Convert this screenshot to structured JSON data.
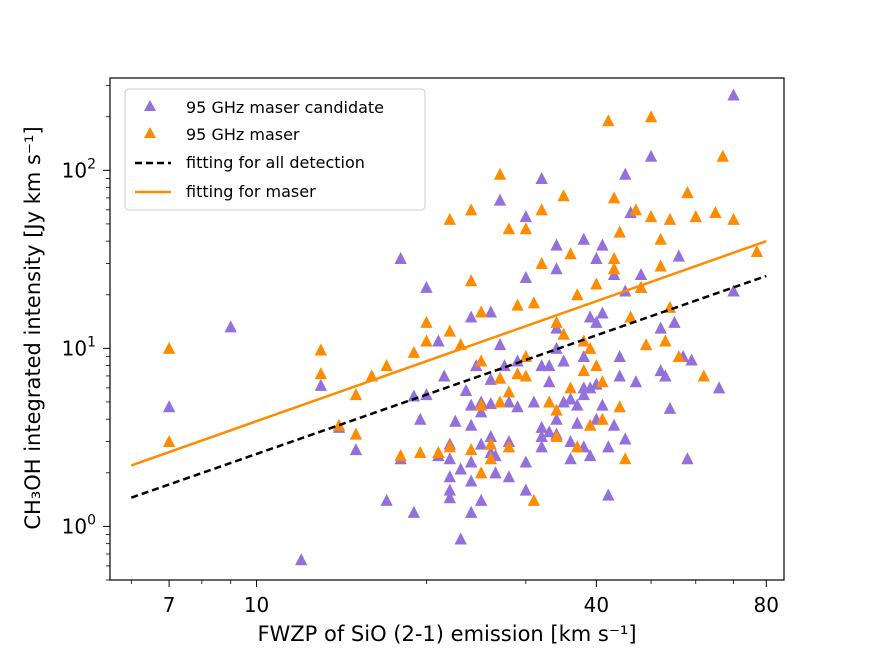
{
  "chart_data": {
    "type": "scatter",
    "xscale": "log",
    "yscale": "log",
    "xlim": [
      5.5,
      86
    ],
    "ylim": [
      0.5,
      330
    ],
    "xlabel": "FWZP of SiO (2-1) emission [km s⁻¹]",
    "ylabel": "CH₃OH integrated intensity [Jy km s⁻¹]",
    "xticks": [
      {
        "value": 7,
        "label": "7"
      },
      {
        "value": 10,
        "label": "10"
      },
      {
        "value": 40,
        "label": "40"
      },
      {
        "value": 80,
        "label": "80"
      }
    ],
    "yticks": [
      {
        "value": 1,
        "base": "10",
        "exp": "0"
      },
      {
        "value": 10,
        "base": "10",
        "exp": "1"
      },
      {
        "value": 100,
        "base": "10",
        "exp": "2"
      }
    ],
    "legend_position": "upper-left",
    "series": [
      {
        "name": "95 GHz maser candidate",
        "kind": "marker",
        "marker": "triangle",
        "color": "#9370DB",
        "points": [
          [
            7.0,
            4.7
          ],
          [
            9.0,
            13.2
          ],
          [
            12.0,
            0.65
          ],
          [
            13.0,
            6.2
          ],
          [
            14.0,
            3.6
          ],
          [
            15.0,
            2.7
          ],
          [
            16.0,
            7.0
          ],
          [
            17.0,
            1.4
          ],
          [
            18.0,
            32.0
          ],
          [
            18.0,
            2.4
          ],
          [
            19.0,
            5.4
          ],
          [
            19.0,
            1.2
          ],
          [
            19.5,
            4.0
          ],
          [
            20.0,
            22.0
          ],
          [
            20.0,
            5.5
          ],
          [
            21.0,
            11.0
          ],
          [
            21.0,
            2.5
          ],
          [
            21.5,
            7.0
          ],
          [
            22.0,
            2.9
          ],
          [
            22.0,
            2.4
          ],
          [
            22.0,
            1.9
          ],
          [
            22.0,
            1.6
          ],
          [
            22.0,
            1.45
          ],
          [
            22.5,
            3.9
          ],
          [
            23.0,
            2.1
          ],
          [
            23.0,
            0.85
          ],
          [
            23.5,
            5.8
          ],
          [
            24.0,
            15.0
          ],
          [
            24.0,
            4.8
          ],
          [
            24.0,
            3.7
          ],
          [
            24.0,
            2.3
          ],
          [
            24.0,
            1.8
          ],
          [
            24.0,
            1.2
          ],
          [
            24.5,
            8.0
          ],
          [
            25.0,
            5.0
          ],
          [
            25.0,
            4.4
          ],
          [
            25.0,
            2.9
          ],
          [
            25.0,
            1.4
          ],
          [
            26.0,
            16.0
          ],
          [
            26.0,
            6.7
          ],
          [
            26.0,
            4.9
          ],
          [
            26.0,
            3.2
          ],
          [
            26.0,
            2.6
          ],
          [
            26.5,
            2.5
          ],
          [
            26.5,
            2.0
          ],
          [
            27.0,
            68.0
          ],
          [
            27.0,
            10.5
          ],
          [
            27.5,
            8.0
          ],
          [
            28.0,
            5.0
          ],
          [
            28.0,
            3.0
          ],
          [
            28.0,
            1.9
          ],
          [
            29.0,
            8.5
          ],
          [
            29.0,
            4.7
          ],
          [
            30.0,
            25.0
          ],
          [
            30.0,
            9.0
          ],
          [
            30.0,
            2.3
          ],
          [
            30.0,
            1.6
          ],
          [
            30.0,
            55.0
          ],
          [
            31.0,
            5.0
          ],
          [
            32.0,
            90.0
          ],
          [
            32.0,
            8.0
          ],
          [
            32.0,
            3.6
          ],
          [
            32.0,
            3.2
          ],
          [
            32.0,
            2.8
          ],
          [
            33.0,
            8.0
          ],
          [
            33.0,
            6.5
          ],
          [
            33.0,
            3.4
          ],
          [
            34.0,
            38.0
          ],
          [
            34.0,
            28.0
          ],
          [
            34.0,
            13.0
          ],
          [
            34.0,
            10.0
          ],
          [
            34.0,
            4.0
          ],
          [
            34.0,
            3.3
          ],
          [
            35.0,
            8.5
          ],
          [
            35.0,
            5.0
          ],
          [
            36.0,
            3.0
          ],
          [
            36.0,
            5.2
          ],
          [
            36.0,
            2.4
          ],
          [
            37.0,
            4.8
          ],
          [
            37.0,
            3.8
          ],
          [
            38.0,
            9.0
          ],
          [
            38.0,
            6.0
          ],
          [
            38.0,
            5.5
          ],
          [
            38.0,
            2.8
          ],
          [
            38.0,
            41.0
          ],
          [
            39.0,
            15.0
          ],
          [
            39.0,
            6.0
          ],
          [
            39.0,
            2.5
          ],
          [
            40.0,
            32.0
          ],
          [
            40.0,
            14.0
          ],
          [
            40.0,
            6.3
          ],
          [
            40.0,
            4.0
          ],
          [
            41.0,
            38.0
          ],
          [
            41.0,
            15.8
          ],
          [
            41.0,
            4.8
          ],
          [
            42.0,
            2.8
          ],
          [
            42.0,
            1.5
          ],
          [
            43.0,
            3.7
          ],
          [
            43.0,
            26.0
          ],
          [
            44.0,
            9.0
          ],
          [
            44.0,
            7.0
          ],
          [
            45.0,
            95.0
          ],
          [
            45.0,
            21.0
          ],
          [
            45.0,
            3.1
          ],
          [
            46.0,
            58.0
          ],
          [
            47.0,
            6.5
          ],
          [
            48.0,
            22.0
          ],
          [
            48.0,
            26.0
          ],
          [
            50.0,
            120.0
          ],
          [
            52.0,
            7.5
          ],
          [
            52.0,
            13.0
          ],
          [
            53.0,
            7.0
          ],
          [
            54.0,
            4.6
          ],
          [
            55.0,
            14.0
          ],
          [
            56.0,
            33.0
          ],
          [
            57.0,
            9.0
          ],
          [
            58.0,
            2.4
          ],
          [
            59.0,
            8.6
          ],
          [
            66.0,
            6.0
          ],
          [
            70.0,
            265.0
          ],
          [
            70.0,
            21.0
          ]
        ]
      },
      {
        "name": "95 GHz maser",
        "kind": "marker",
        "marker": "triangle",
        "color": "#FF8C00",
        "points": [
          [
            7.0,
            10.0
          ],
          [
            7.0,
            3.0
          ],
          [
            13.0,
            9.8
          ],
          [
            13.0,
            7.2
          ],
          [
            14.0,
            3.7
          ],
          [
            15.0,
            5.5
          ],
          [
            15.0,
            3.3
          ],
          [
            16.0,
            7.0
          ],
          [
            17.0,
            8.0
          ],
          [
            18.0,
            2.5
          ],
          [
            19.0,
            9.5
          ],
          [
            19.5,
            2.6
          ],
          [
            20.0,
            14.0
          ],
          [
            20.0,
            11.0
          ],
          [
            21.0,
            2.6
          ],
          [
            22.0,
            53.0
          ],
          [
            22.0,
            12.5
          ],
          [
            22.0,
            2.8
          ],
          [
            23.0,
            10.5
          ],
          [
            24.0,
            60.0
          ],
          [
            24.0,
            24.0
          ],
          [
            24.0,
            2.7
          ],
          [
            25.0,
            16.0
          ],
          [
            25.0,
            8.5
          ],
          [
            25.0,
            4.8
          ],
          [
            25.0,
            2.0
          ],
          [
            26.0,
            2.9
          ],
          [
            26.0,
            2.4
          ],
          [
            27.0,
            95.0
          ],
          [
            27.0,
            5.0
          ],
          [
            27.0,
            6.8
          ],
          [
            28.0,
            47.0
          ],
          [
            28.0,
            5.7
          ],
          [
            28.0,
            2.8
          ],
          [
            29.0,
            17.5
          ],
          [
            29.0,
            7.2
          ],
          [
            30.0,
            47.0
          ],
          [
            30.0,
            9.0
          ],
          [
            30.0,
            7.0
          ],
          [
            31.0,
            18.0
          ],
          [
            31.0,
            1.4
          ],
          [
            32.0,
            60.0
          ],
          [
            32.0,
            30.0
          ],
          [
            33.0,
            5.0
          ],
          [
            34.0,
            14.0
          ],
          [
            34.0,
            4.5
          ],
          [
            34.0,
            3.2
          ],
          [
            35.0,
            72.0
          ],
          [
            35.0,
            12.0
          ],
          [
            36.0,
            34.0
          ],
          [
            36.0,
            6.0
          ],
          [
            37.0,
            20.0
          ],
          [
            37.0,
            2.8
          ],
          [
            38.0,
            11.0
          ],
          [
            38.0,
            7.5
          ],
          [
            39.0,
            10.0
          ],
          [
            39.0,
            3.7
          ],
          [
            40.0,
            23.0
          ],
          [
            40.0,
            8.0
          ],
          [
            41.0,
            6.5
          ],
          [
            41.0,
            4.0
          ],
          [
            42.0,
            190.0
          ],
          [
            43.0,
            70.0
          ],
          [
            43.0,
            32.0
          ],
          [
            43.0,
            28.0
          ],
          [
            44.0,
            45.0
          ],
          [
            44.0,
            4.7
          ],
          [
            45.0,
            2.4
          ],
          [
            46.0,
            15.0
          ],
          [
            47.0,
            60.0
          ],
          [
            48.0,
            22.0
          ],
          [
            49.0,
            10.5
          ],
          [
            50.0,
            200.0
          ],
          [
            50.0,
            55.0
          ],
          [
            52.0,
            41.0
          ],
          [
            52.0,
            29.0
          ],
          [
            53.0,
            11.0
          ],
          [
            54.0,
            53.0
          ],
          [
            54.0,
            17.0
          ],
          [
            56.0,
            9.0
          ],
          [
            58.0,
            75.0
          ],
          [
            60.0,
            55.0
          ],
          [
            62.0,
            7.0
          ],
          [
            65.0,
            58.0
          ],
          [
            67.0,
            120.0
          ],
          [
            70.0,
            53.0
          ],
          [
            77.0,
            35.0
          ]
        ]
      },
      {
        "name": "fitting for all detection",
        "kind": "line",
        "dash": "dashed",
        "color": "#000000",
        "x": [
          6,
          80
        ],
        "y": [
          1.45,
          25.5
        ]
      },
      {
        "name": "fitting for maser",
        "kind": "line",
        "dash": "solid",
        "color": "#FF8C00",
        "x": [
          6,
          80
        ],
        "y": [
          2.2,
          40.0
        ]
      }
    ]
  }
}
